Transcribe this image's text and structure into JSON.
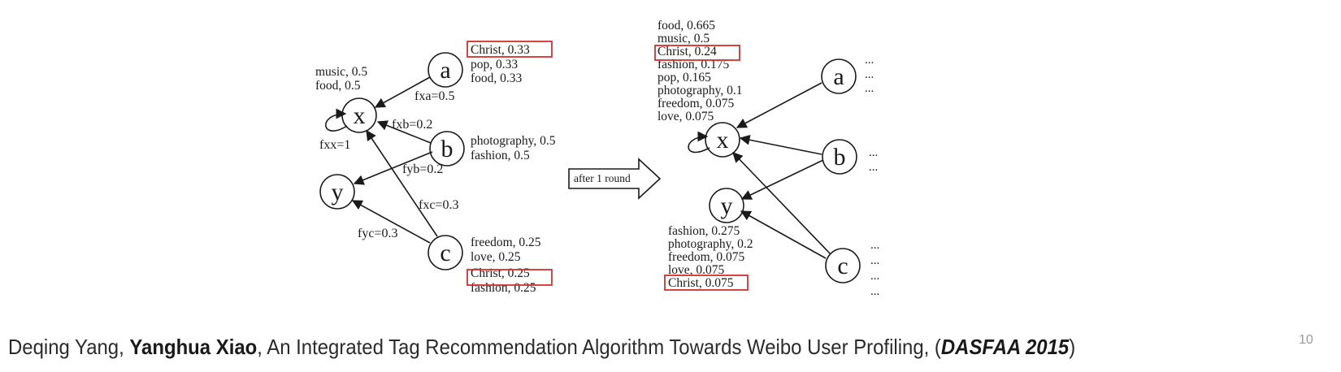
{
  "left_graph": {
    "nodes": {
      "a": "a",
      "b": "b",
      "c": "c",
      "x": "x",
      "y": "y"
    },
    "edges": {
      "fxa": "fxa=0.5",
      "fxb": "fxb=0.2",
      "fyb": "fyb=0.2",
      "fxc": "fxc=0.3",
      "fyc": "fyc=0.3",
      "fxx": "fxx=1"
    },
    "x_tags": [
      "music, 0.5",
      "food, 0.5"
    ],
    "a_tags": [
      "Christ, 0.33",
      "pop, 0.33",
      "food, 0.33"
    ],
    "b_tags": [
      "photography, 0.5",
      "fashion, 0.5"
    ],
    "c_tags": [
      "freedom, 0.25",
      "love, 0.25",
      "Christ, 0.25",
      "fashion, 0.25"
    ]
  },
  "arrow_label": "after 1 round",
  "right_graph": {
    "nodes": {
      "a": "a",
      "b": "b",
      "c": "c",
      "x": "x",
      "y": "y"
    },
    "x_tags": [
      "food, 0.665",
      "music, 0.5",
      "Christ, 0.24",
      "fashion, 0.175",
      "pop, 0.165",
      "photography, 0.1",
      "freedom, 0.075",
      "love, 0.075"
    ],
    "y_tags": [
      "fashion, 0.275",
      "photography, 0.2",
      "freedom, 0.075",
      "love, 0.075",
      "Christ, 0.075"
    ],
    "ellipsis": "..."
  },
  "citation": {
    "author1": "Deqing Yang,",
    "author2": "Yanghua Xiao",
    "title": ", An Integrated  Tag Recommendation  Algorithm Towards Weibo User Profiling, (",
    "venue": "DASFAA 2015",
    "close": ")"
  },
  "page_number": "10",
  "colors": {
    "highlight_box": "#d32f2f",
    "ink": "#1a1a1a"
  }
}
